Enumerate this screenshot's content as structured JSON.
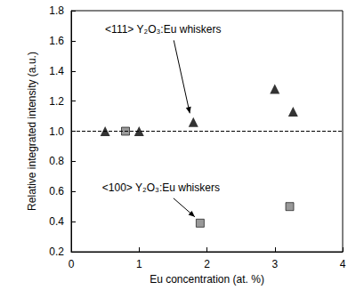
{
  "chart_data": {
    "type": "scatter",
    "x_label": "Eu concentration (at. %)",
    "y_label": "Relative integrated intensity (a.u.)",
    "xlim": [
      0,
      4
    ],
    "xticks": [
      0,
      1,
      2,
      3,
      4
    ],
    "ylim": [
      0.2,
      1.8
    ],
    "yticks": [
      0.2,
      0.4,
      0.6,
      0.8,
      {
        "value": 1,
        "label": "1.0"
      },
      1.2,
      1.4,
      1.6,
      1.8
    ],
    "grid": false,
    "reference_y": 1,
    "series": [
      {
        "name": "<111> Y₂O₃:Eu whiskers",
        "color": "#000000",
        "marker": "triangle",
        "x": [
          0.5,
          1.0,
          1.8,
          3.0,
          3.27
        ],
        "values": [
          1.0,
          1.0,
          1.06,
          1.28,
          1.13
        ]
      },
      {
        "name": "<100> Y₂O₃:Eu whiskers",
        "color": "#808080",
        "marker": "square",
        "x": [
          0.8,
          1.9,
          3.22
        ],
        "values": [
          1.0,
          0.39,
          0.5
        ]
      }
    ],
    "annotations": [
      {
        "text": "<111> Y₂O₃:Eu whiskers",
        "x": 1.8,
        "y": 1.06
      },
      {
        "text": "<100> Y₂O₃:Eu whiskers",
        "x": 1.9,
        "y": 0.39
      }
    ]
  }
}
